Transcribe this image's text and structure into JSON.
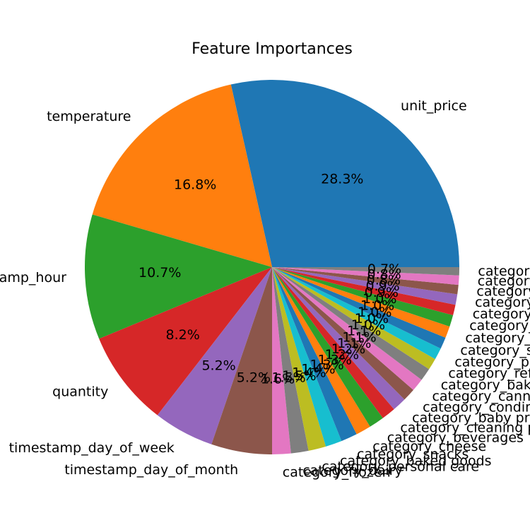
{
  "chart_data": {
    "type": "pie",
    "title": "Feature Importances",
    "start_angle_deg": 0,
    "direction": "counterclockwise",
    "slices": [
      {
        "label": "unit_price",
        "value": 28.3,
        "pct_label": "28.3%",
        "color": "#1f77b4"
      },
      {
        "label": "temperature",
        "value": 16.8,
        "pct_label": "16.8%",
        "color": "#ff7f0e"
      },
      {
        "label": "timestamp_hour",
        "value": 10.7,
        "pct_label": "10.7%",
        "color": "#2ca02c"
      },
      {
        "label": "quantity",
        "value": 8.2,
        "pct_label": "8.2%",
        "color": "#d62728"
      },
      {
        "label": "timestamp_day_of_week",
        "value": 5.2,
        "pct_label": "5.2%",
        "color": "#9467bd"
      },
      {
        "label": "timestamp_day_of_month",
        "value": 5.2,
        "pct_label": "5.2%",
        "color": "#8c564b"
      },
      {
        "label": "category_frozen",
        "value": 1.6,
        "pct_label": "1.6%",
        "color": "#e377c2"
      },
      {
        "label": "category_dairy",
        "value": 1.5,
        "pct_label": "1.5%",
        "color": "#7f7f7f"
      },
      {
        "label": "category_personal care",
        "value": 1.5,
        "pct_label": "1.5%",
        "color": "#bcbd22"
      },
      {
        "label": "category_baked goods",
        "value": 1.4,
        "pct_label": "1.4%",
        "color": "#17becf"
      },
      {
        "label": "category_snacks",
        "value": 1.4,
        "pct_label": "1.4%",
        "color": "#1f77b4"
      },
      {
        "label": "category_cheese",
        "value": 1.3,
        "pct_label": "1.3%",
        "color": "#ff7f0e"
      },
      {
        "label": "category_beverages",
        "value": 1.3,
        "pct_label": "1.3%",
        "color": "#2ca02c"
      },
      {
        "label": "category_cleaning products",
        "value": 1.2,
        "pct_label": "1.2%",
        "color": "#d62728"
      },
      {
        "label": "category_baby products",
        "value": 1.2,
        "pct_label": "1.2%",
        "color": "#9467bd"
      },
      {
        "label": "category_condiments",
        "value": 1.1,
        "pct_label": "1.1%",
        "color": "#8c564b"
      },
      {
        "label": "category_canned goods",
        "value": 1.1,
        "pct_label": "1.1%",
        "color": "#e377c2"
      },
      {
        "label": "category_baking",
        "value": 1.1,
        "pct_label": "1.1%",
        "color": "#7f7f7f"
      },
      {
        "label": "category_refrigerated",
        "value": 1.0,
        "pct_label": "1.0%",
        "color": "#bcbd22"
      },
      {
        "label": "category_pasta",
        "value": 1.0,
        "pct_label": "1.0%",
        "color": "#17becf"
      },
      {
        "label": "category_spices",
        "value": 1.0,
        "pct_label": "1.0%",
        "color": "#1f77b4"
      },
      {
        "label": "category_kitchen",
        "value": 1.0,
        "pct_label": "1.0%",
        "color": "#ff7f0e"
      },
      {
        "label": "category_tea",
        "value": 1.0,
        "pct_label": "1.0%",
        "color": "#2ca02c"
      },
      {
        "label": "category_produce",
        "value": 0.9,
        "pct_label": "0.9%",
        "color": "#d62728"
      },
      {
        "label": "category_meat",
        "value": 0.9,
        "pct_label": "0.9%",
        "color": "#9467bd"
      },
      {
        "label": "category_grains",
        "value": 0.8,
        "pct_label": "0.8%",
        "color": "#8c564b"
      },
      {
        "label": "category_seafood",
        "value": 0.8,
        "pct_label": "0.8%",
        "color": "#e377c2"
      },
      {
        "label": "category_household",
        "value": 0.7,
        "pct_label": "0.7%",
        "color": "#7f7f7f"
      }
    ]
  }
}
